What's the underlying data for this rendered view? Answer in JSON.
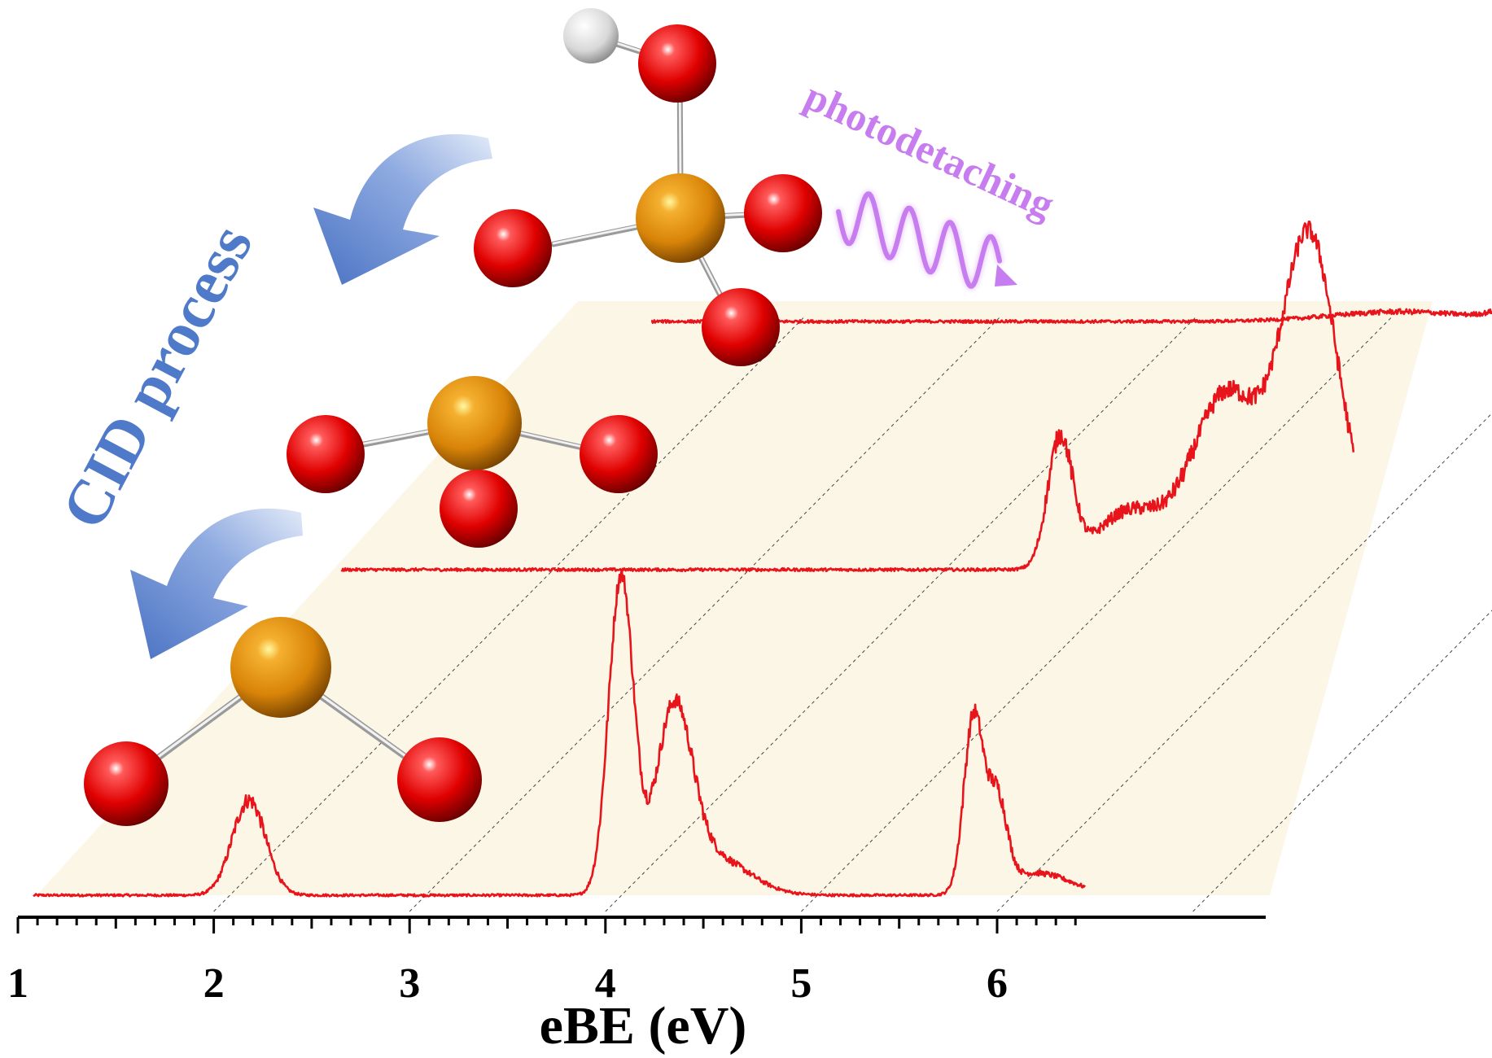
{
  "chart_data": {
    "type": "line",
    "layout": "3d-waterfall",
    "xlabel": "eBE (eV)",
    "x_ticks": [
      "1",
      "2",
      "3",
      "4",
      "5",
      "6"
    ],
    "xlim": [
      1,
      6.45
    ],
    "annotations": {
      "cid": "CID process",
      "photo": "photodetaching"
    },
    "colors": {
      "trace": "#e8141c",
      "floor": "#fcf6e6",
      "oxygen": "#e00000",
      "phosphorus": "#e08a10",
      "hydrogen": "#e8e8e8",
      "arrow": "#5b82cc",
      "wave": "#c77df0"
    },
    "series": [
      {
        "peaks": [
          {
            "center": 2.18,
            "height": 0.3,
            "width": 0.12
          },
          {
            "center": 4.08,
            "height": 1.0,
            "width": 0.09
          },
          {
            "center": 4.35,
            "height": 0.55,
            "width": 0.13
          },
          {
            "center": 4.55,
            "height": 0.12,
            "width": 0.25
          },
          {
            "center": 5.88,
            "height": 0.55,
            "width": 0.07
          },
          {
            "center": 6.0,
            "height": 0.28,
            "width": 0.07
          },
          {
            "center": 6.2,
            "height": 0.07,
            "width": 0.25
          }
        ],
        "noise": 0.025
      },
      {
        "peaks": [
          {
            "center": 4.95,
            "height": 0.4,
            "width": 0.09
          },
          {
            "center": 5.3,
            "height": 0.18,
            "width": 0.25
          },
          {
            "center": 5.8,
            "height": 0.55,
            "width": 0.25
          },
          {
            "center": 6.22,
            "height": 1.0,
            "width": 0.2
          },
          {
            "center": 6.6,
            "height": 0.12,
            "width": 0.35
          }
        ],
        "noise": 0.03
      },
      {
        "peaks": [
          {
            "center": 5.3,
            "height": 0.04,
            "width": 0.5
          },
          {
            "center": 6.0,
            "height": 0.1,
            "width": 0.2
          },
          {
            "center": 6.6,
            "height": 0.55,
            "width": 0.25
          },
          {
            "center": 6.9,
            "height": 1.0,
            "width": 0.2
          },
          {
            "center": 7.1,
            "height": 0.7,
            "width": 0.25
          }
        ],
        "noise": 0.04
      }
    ]
  }
}
